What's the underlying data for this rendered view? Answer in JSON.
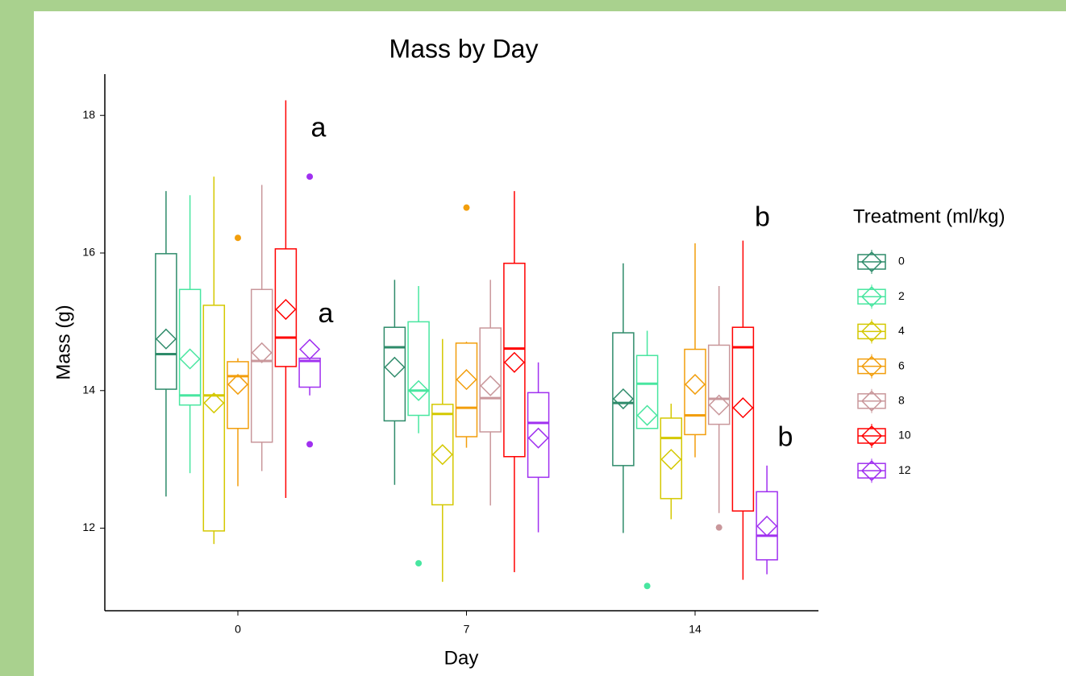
{
  "chart_data": {
    "type": "boxplot",
    "title": "Mass by Day",
    "x_label": "Day",
    "y_label": "Mass (g)",
    "legend_title": "Treatment (ml/kg)",
    "legend_position": "right",
    "categories": [
      "0",
      "7",
      "14"
    ],
    "ylim": [
      10.8,
      18.6
    ],
    "yticks": [
      12,
      14,
      16,
      18
    ],
    "series": [
      {
        "name": "0",
        "color": "#2e8b6a",
        "boxes": [
          {
            "min": 12.46,
            "q1": 14.02,
            "median": 14.53,
            "q3": 15.99,
            "max": 16.9,
            "mean": 14.75,
            "outliers": []
          },
          {
            "min": 12.63,
            "q1": 13.56,
            "median": 14.63,
            "q3": 14.92,
            "max": 15.61,
            "mean": 14.34,
            "outliers": []
          },
          {
            "min": 11.93,
            "q1": 12.91,
            "median": 13.82,
            "q3": 14.84,
            "max": 15.85,
            "mean": 13.88,
            "outliers": []
          }
        ]
      },
      {
        "name": "2",
        "color": "#48e6a0",
        "boxes": [
          {
            "min": 12.8,
            "q1": 13.79,
            "median": 13.93,
            "q3": 15.47,
            "max": 16.84,
            "mean": 14.46,
            "outliers": []
          },
          {
            "min": 13.38,
            "q1": 13.64,
            "median": 14.0,
            "q3": 15.0,
            "max": 15.52,
            "mean": 14.0,
            "outliers": [
              11.49
            ]
          },
          {
            "min": 13.44,
            "q1": 13.45,
            "median": 14.1,
            "q3": 14.51,
            "max": 14.87,
            "mean": 13.64,
            "outliers": [
              11.16
            ]
          }
        ]
      },
      {
        "name": "4",
        "color": "#d4c800",
        "boxes": [
          {
            "min": 11.77,
            "q1": 11.96,
            "median": 13.93,
            "q3": 15.24,
            "max": 17.11,
            "mean": 13.82,
            "outliers": []
          },
          {
            "min": 11.22,
            "q1": 12.34,
            "median": 13.66,
            "q3": 13.8,
            "max": 14.75,
            "mean": 13.07,
            "outliers": []
          },
          {
            "min": 12.13,
            "q1": 12.43,
            "median": 13.31,
            "q3": 13.6,
            "max": 13.81,
            "mean": 13.0,
            "outliers": []
          }
        ]
      },
      {
        "name": "6",
        "color": "#f29e0c",
        "boxes": [
          {
            "min": 12.61,
            "q1": 13.45,
            "median": 14.21,
            "q3": 14.42,
            "max": 14.47,
            "mean": 14.09,
            "outliers": [
              16.22
            ]
          },
          {
            "min": 13.17,
            "q1": 13.33,
            "median": 13.75,
            "q3": 14.69,
            "max": 14.71,
            "mean": 14.16,
            "outliers": [
              16.66
            ]
          },
          {
            "min": 13.03,
            "q1": 13.36,
            "median": 13.64,
            "q3": 14.6,
            "max": 16.14,
            "mean": 14.09,
            "outliers": []
          }
        ]
      },
      {
        "name": "8",
        "color": "#c9979b",
        "boxes": [
          {
            "min": 12.83,
            "q1": 13.25,
            "median": 14.43,
            "q3": 15.47,
            "max": 16.99,
            "mean": 14.55,
            "outliers": []
          },
          {
            "min": 12.33,
            "q1": 13.4,
            "median": 13.89,
            "q3": 14.91,
            "max": 15.61,
            "mean": 14.07,
            "outliers": []
          },
          {
            "min": 12.22,
            "q1": 13.51,
            "median": 13.88,
            "q3": 14.66,
            "max": 15.52,
            "mean": 13.79,
            "outliers": [
              12.01
            ]
          }
        ]
      },
      {
        "name": "10",
        "color": "#ff0000",
        "boxes": [
          {
            "min": 12.44,
            "q1": 14.35,
            "median": 14.77,
            "q3": 16.06,
            "max": 18.22,
            "mean": 15.18,
            "outliers": []
          },
          {
            "min": 11.36,
            "q1": 13.04,
            "median": 14.61,
            "q3": 15.85,
            "max": 16.9,
            "mean": 14.41,
            "outliers": []
          },
          {
            "min": 11.25,
            "q1": 12.25,
            "median": 14.63,
            "q3": 14.92,
            "max": 16.18,
            "mean": 13.75,
            "outliers": []
          }
        ]
      },
      {
        "name": "12",
        "color": "#a030f0",
        "boxes": [
          {
            "min": 13.93,
            "q1": 14.05,
            "median": 14.43,
            "q3": 14.47,
            "max": 14.47,
            "mean": 14.6,
            "outliers": [
              17.11,
              13.22
            ]
          },
          {
            "min": 11.94,
            "q1": 12.74,
            "median": 13.53,
            "q3": 13.97,
            "max": 14.41,
            "mean": 13.31,
            "outliers": []
          },
          {
            "min": 11.33,
            "q1": 11.54,
            "median": 11.89,
            "q3": 12.53,
            "max": 12.91,
            "mean": 12.03,
            "outliers": []
          }
        ]
      }
    ],
    "annotations": [
      {
        "text": "a",
        "x": "0",
        "y": 17.8
      },
      {
        "text": "a",
        "x": "0",
        "y": 15.1
      },
      {
        "text": "b",
        "x": "14",
        "y": 16.5
      },
      {
        "text": "b",
        "x": "14",
        "y": 13.3
      }
    ]
  }
}
